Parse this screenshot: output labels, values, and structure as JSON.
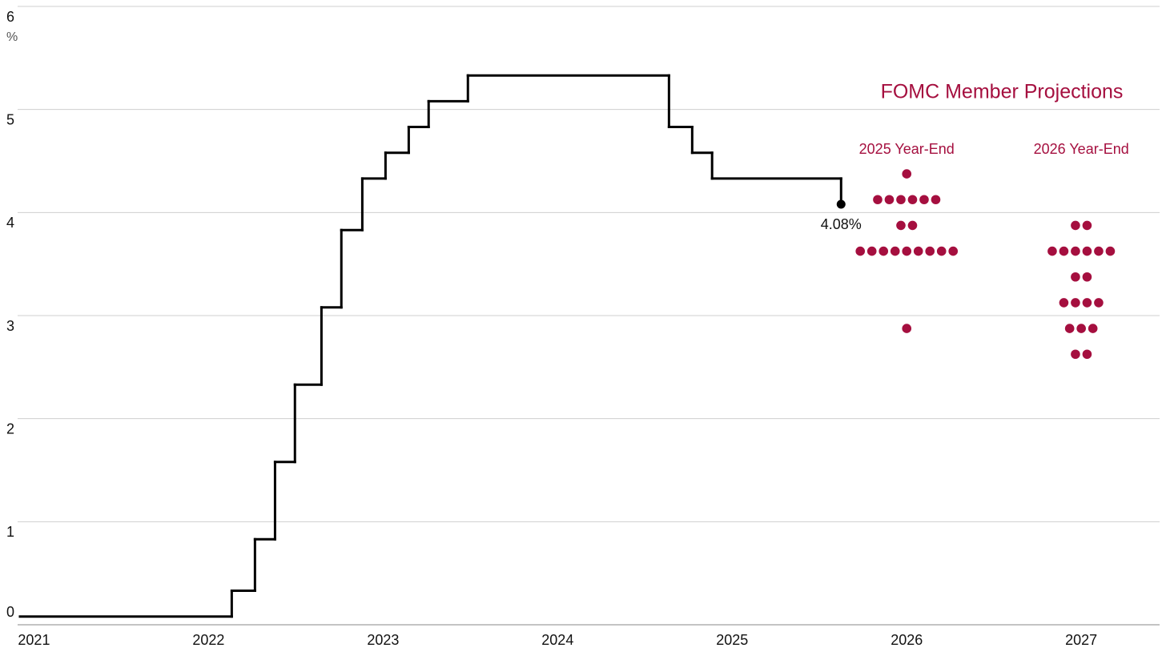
{
  "chart_data": {
    "type": "step",
    "y_unit": "%",
    "xlim": [
      2020.92,
      2027.38
    ],
    "xticks": [
      2021,
      2022,
      2023,
      2024,
      2025,
      2026,
      2027
    ],
    "ylim": [
      0,
      6
    ],
    "yticks": [
      0,
      1,
      2,
      3,
      4,
      5,
      6
    ],
    "grid": true,
    "series": [
      {
        "color": "#000000",
        "x": [
          2020.92,
          2022.133,
          2022.266,
          2022.381,
          2022.495,
          2022.647,
          2022.761,
          2022.881,
          2023.014,
          2023.147,
          2023.261,
          2023.486,
          2024.638,
          2024.771,
          2024.885,
          2025.624
        ],
        "values": [
          0.08,
          0.33,
          0.83,
          1.58,
          2.33,
          3.08,
          3.83,
          4.33,
          4.58,
          4.83,
          5.08,
          5.33,
          4.83,
          4.58,
          4.33,
          4.08
        ],
        "value_labels": [
          null,
          null,
          null,
          null,
          null,
          null,
          null,
          null,
          null,
          null,
          null,
          null,
          null,
          null,
          null,
          "4.08%"
        ]
      }
    ],
    "projections_title": "FOMC Member Projections",
    "projections_color": "#a50f3f",
    "projections": [
      {
        "name": "2025 Year-End",
        "x": 2026,
        "values": [
          4.375,
          4.125,
          3.875,
          3.625,
          2.875
        ],
        "counts": [
          1,
          6,
          2,
          9,
          1
        ]
      },
      {
        "name": "2026 Year-End",
        "x": 2027,
        "values": [
          3.875,
          3.625,
          3.375,
          3.125,
          2.875,
          2.625
        ],
        "counts": [
          2,
          6,
          2,
          4,
          3,
          2
        ]
      }
    ]
  }
}
